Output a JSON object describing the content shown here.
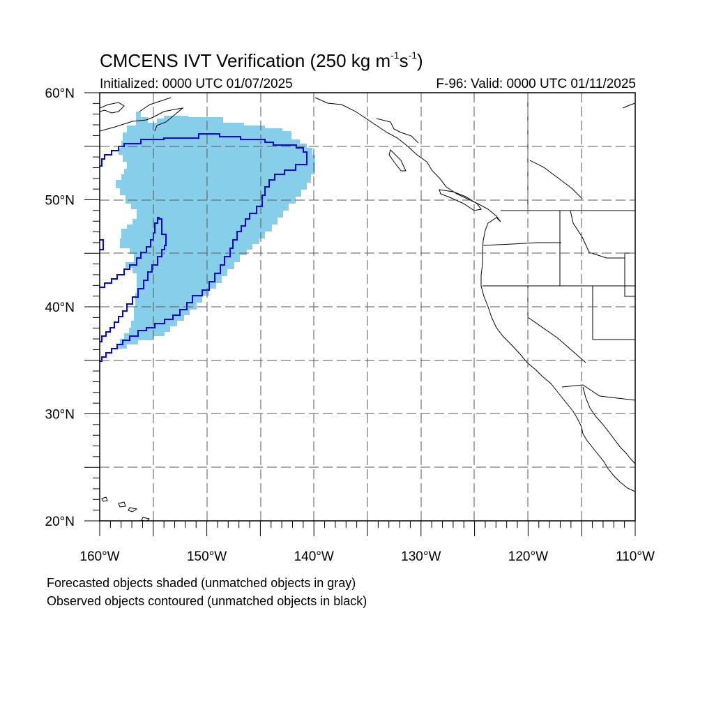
{
  "title": {
    "prefix": "CMCENS IVT Verification (250 kg m",
    "sup1": "-1",
    "mid": "s",
    "sup2": "-1",
    "suffix": ")"
  },
  "subtitle_left": "Initialized: 0000 UTC 01/07/2025",
  "subtitle_right": "F-96: Valid: 0000 UTC 01/11/2025",
  "map": {
    "extent": {
      "lon": [
        -160,
        -110
      ],
      "lat": [
        20,
        60
      ]
    },
    "lat_labels": [
      {
        "value": 60,
        "text": "60°N"
      },
      {
        "value": 50,
        "text": "50°N"
      },
      {
        "value": 40,
        "text": "40°N"
      },
      {
        "value": 30,
        "text": "30°N"
      },
      {
        "value": 20,
        "text": "20°N"
      }
    ],
    "lon_labels": [
      {
        "value": -160,
        "text": "160°W"
      },
      {
        "value": -150,
        "text": "150°W"
      },
      {
        "value": -140,
        "text": "140°W"
      },
      {
        "value": -130,
        "text": "130°W"
      },
      {
        "value": -120,
        "text": "120°W"
      },
      {
        "value": -110,
        "text": "110°W"
      }
    ],
    "gridlines": "dashed every 5 degrees",
    "colors": {
      "forecast_fill": "#87ceeb",
      "observed_contour": "#0000ff",
      "coastline": "#000000",
      "grid": "#555555"
    }
  },
  "footer": {
    "line1": "Forecasted objects shaded (unmatched objects in gray)",
    "line2": "Observed objects contoured (unmatched objects in black)"
  }
}
